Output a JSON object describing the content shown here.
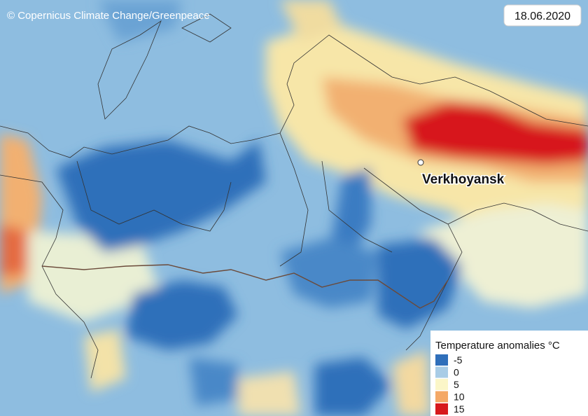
{
  "credit": "© Copernicus Climate Change/Greenpeace",
  "date": "18.06.2020",
  "city": {
    "name": "Verkhoyansk"
  },
  "legend": {
    "title": "Temperature anomalies °C",
    "items": [
      {
        "value": -5,
        "color": "#2f6fba"
      },
      {
        "value": 0,
        "color": "#a8cce6"
      },
      {
        "value": 5,
        "color": "#fbf6c8"
      },
      {
        "value": 10,
        "color": "#f4a866"
      },
      {
        "value": 15,
        "color": "#d7191c"
      }
    ]
  }
}
